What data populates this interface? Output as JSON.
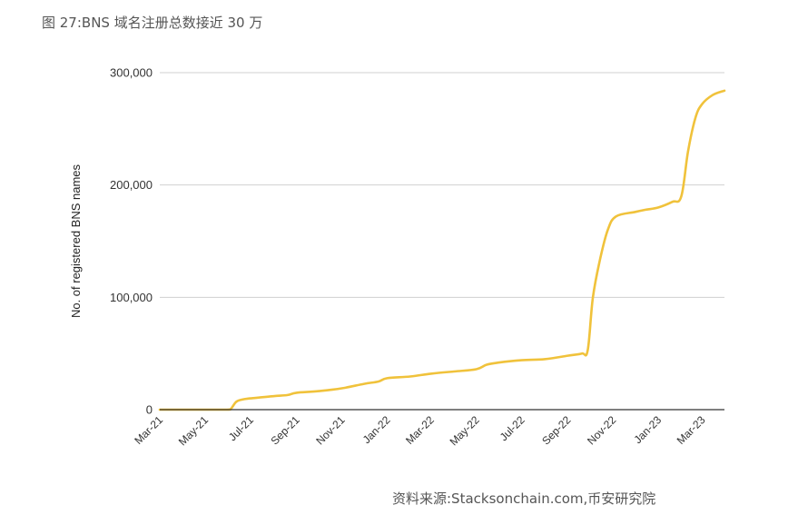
{
  "caption": "图 27:BNS 域名注册总数接近 30 万",
  "source": "资料来源:Stacksonchain.com,币安研究院",
  "chart_data": {
    "type": "line",
    "title": "",
    "xlabel": "",
    "ylabel": "No. of registered BNS names",
    "ylim": [
      0,
      300000
    ],
    "yticks": [
      0,
      100000,
      200000,
      300000
    ],
    "ytick_labels": [
      "0",
      "100,000",
      "200,000",
      "300,000"
    ],
    "xtick_labels": [
      "Mar-21",
      "May-21",
      "Jul-21",
      "Sep-21",
      "Nov-21",
      "Jan-22",
      "Mar-22",
      "May-22",
      "Jul-22",
      "Sep-22",
      "Nov-22",
      "Jan-23",
      "Mar-23"
    ],
    "grid": true,
    "line_color": "#F0C23B",
    "series": [
      {
        "x": [
          "2021-03-01",
          "2021-04-01",
          "2021-05-01",
          "2021-05-31",
          "2021-06-05",
          "2021-06-12",
          "2021-06-20",
          "2021-07-01",
          "2021-08-01",
          "2021-08-20",
          "2021-09-01",
          "2021-10-01",
          "2021-11-01",
          "2021-12-01",
          "2021-12-20",
          "2022-01-01",
          "2022-02-01",
          "2022-03-01",
          "2022-04-01",
          "2022-05-01",
          "2022-05-15",
          "2022-06-01",
          "2022-07-01",
          "2022-08-01",
          "2022-09-01",
          "2022-09-20",
          "2022-09-28",
          "2022-10-05",
          "2022-10-15",
          "2022-10-25",
          "2022-11-05",
          "2022-12-01",
          "2022-12-15",
          "2023-01-01",
          "2023-01-20",
          "2023-02-01",
          "2023-02-10",
          "2023-02-20",
          "2023-03-01",
          "2023-03-15",
          "2023-03-31"
        ],
        "y": [
          0,
          0,
          0,
          0,
          1000,
          7000,
          9000,
          10000,
          12000,
          13000,
          15000,
          16500,
          19000,
          23000,
          25000,
          28000,
          29500,
          32000,
          34000,
          36000,
          40000,
          42000,
          44000,
          45000,
          48000,
          50000,
          53000,
          100000,
          135000,
          160000,
          172000,
          176000,
          178000,
          180000,
          185000,
          190000,
          230000,
          260000,
          272000,
          280000,
          284000
        ]
      }
    ]
  }
}
